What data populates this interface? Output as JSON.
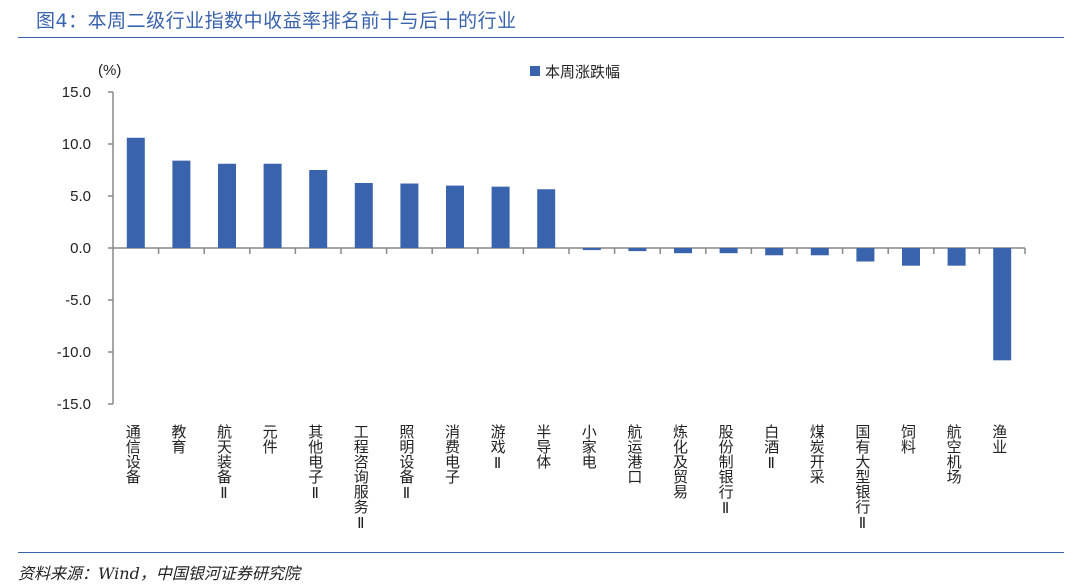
{
  "title": "图4：本周二级行业指数中收益率排名前十与后十的行业",
  "source": "资料来源：Wind，中国银河证券研究院",
  "chart_data": {
    "type": "bar",
    "title": "",
    "ylabel": "(%)",
    "xlabel": "",
    "ylim": [
      -15,
      15
    ],
    "yticks": [
      "15.0",
      "10.0",
      "5.0",
      "0.0",
      "-5.0",
      "-10.0",
      "-15.0"
    ],
    "ytick_values": [
      15,
      10,
      5,
      0,
      -5,
      -10,
      -15
    ],
    "negative_tick_color": "#e8202a",
    "legend_position": "top-center",
    "grid": false,
    "categories": [
      "通信设备",
      "教育",
      "航天装备Ⅱ",
      "元件",
      "其他电子Ⅱ",
      "工程咨询服务Ⅱ",
      "照明设备Ⅱ",
      "消费电子",
      "游戏Ⅱ",
      "半导体",
      "小家电",
      "航运港口",
      "炼化及贸易",
      "股份制银行Ⅱ",
      "白酒Ⅱ",
      "煤炭开采",
      "国有大型银行Ⅱ",
      "饲料",
      "航空机场",
      "渔业"
    ],
    "series": [
      {
        "name": "本周涨跌幅",
        "color": "#3a63ad",
        "values": [
          10.6,
          8.4,
          8.1,
          8.1,
          7.5,
          6.25,
          6.2,
          6.0,
          5.9,
          5.65,
          -0.2,
          -0.3,
          -0.5,
          -0.5,
          -0.7,
          -0.7,
          -1.3,
          -1.7,
          -1.7,
          -10.8
        ]
      }
    ]
  }
}
